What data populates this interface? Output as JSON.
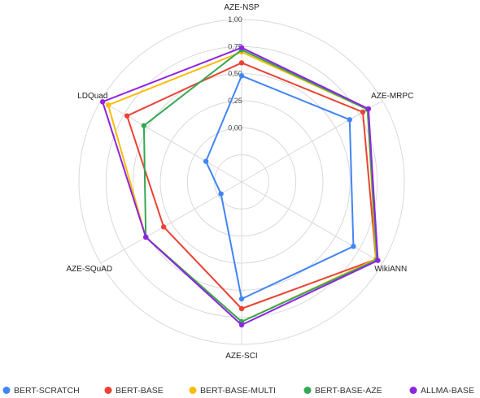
{
  "chart_data": {
    "type": "radar",
    "axes": [
      "AZE-NSP",
      "AZE-MRPC",
      "WikiANN",
      "AZE-SCI",
      "AZE-SQuAD",
      "LDQuad"
    ],
    "tick_labels": [
      "0,00",
      "0,25",
      "0,50",
      "0,75",
      "1,00"
    ],
    "rlim": [
      -0.5,
      1.0
    ],
    "grid": true,
    "legend_position": "bottom",
    "series": [
      {
        "name": "BERT-SCRATCH",
        "color": "#4285F4",
        "values": [
          0.48,
          0.65,
          0.69,
          0.58,
          -0.28,
          -0.12
        ]
      },
      {
        "name": "BERT-BASE",
        "color": "#EA4335",
        "values": [
          0.6,
          0.79,
          0.93,
          0.67,
          0.33,
          0.72
        ]
      },
      {
        "name": "BERT-BASE-MULTI",
        "color": "#FBBC04",
        "values": [
          0.7,
          0.84,
          0.93,
          0.79,
          0.52,
          0.92
        ]
      },
      {
        "name": "BERT-BASE-AZE",
        "color": "#34A853",
        "values": [
          0.72,
          0.84,
          0.94,
          0.79,
          0.52,
          0.54
        ]
      },
      {
        "name": "ALLMA-BASE",
        "color": "#8E24E2",
        "values": [
          0.74,
          0.85,
          0.95,
          0.82,
          0.52,
          0.98
        ]
      }
    ]
  }
}
